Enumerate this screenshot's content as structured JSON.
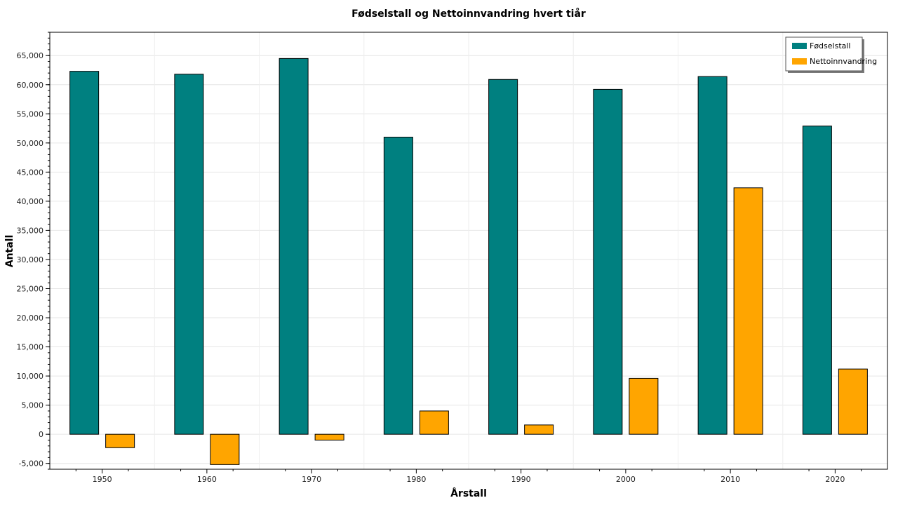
{
  "chart_data": {
    "type": "bar",
    "title": "Fødselstall og Nettoinnvandring hvert tiår",
    "xlabel": "Årstall",
    "ylabel": "Antall",
    "categories": [
      "1950",
      "1960",
      "1970",
      "1980",
      "1990",
      "2000",
      "2010",
      "2020"
    ],
    "series": [
      {
        "name": "Fødselstall",
        "color": "#008080",
        "values": [
          62300,
          61800,
          64500,
          51000,
          60900,
          59200,
          61400,
          52900
        ]
      },
      {
        "name": "Nettoinnvandring",
        "color": "#FFA500",
        "values": [
          -2300,
          -5200,
          -1000,
          4000,
          1600,
          9600,
          42300,
          11200
        ]
      }
    ],
    "ylim": [
      -6000,
      69000
    ],
    "yticks": [
      -5000,
      0,
      5000,
      10000,
      15000,
      20000,
      25000,
      30000,
      35000,
      40000,
      45000,
      50000,
      55000,
      60000,
      65000
    ],
    "ytick_labels": [
      "-5,000",
      "0",
      "5,000",
      "10,000",
      "15,000",
      "20,000",
      "25,000",
      "30,000",
      "35,000",
      "40,000",
      "45,000",
      "50,000",
      "55,000",
      "60,000",
      "65,000"
    ],
    "grid": true,
    "legend_position": "top-right"
  }
}
